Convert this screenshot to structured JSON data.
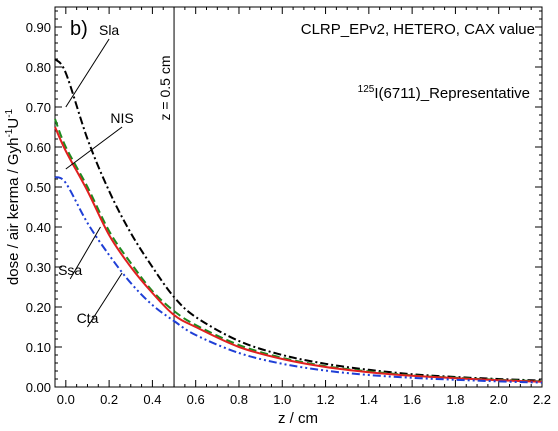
{
  "chart_data": {
    "type": "line",
    "panel_label": "b)",
    "title": "CLRP_EPv2, HETERO, CAX value",
    "subtitle": {
      "sup": "125",
      "main": "I(6711)_Representative"
    },
    "xlabel": "z / cm",
    "ylabel": {
      "main": "dose / air kerma / Gyh",
      "sup1": "-1",
      "mid": "U",
      "sup2": "-1"
    },
    "xlim": [
      -0.05,
      2.2
    ],
    "ylim": [
      0.0,
      0.95
    ],
    "xticks": [
      "0.0",
      "0.2",
      "0.4",
      "0.6",
      "0.8",
      "1.0",
      "1.2",
      "1.4",
      "1.6",
      "1.8",
      "2.0",
      "2.2"
    ],
    "yticks": [
      "0.00",
      "0.10",
      "0.20",
      "0.30",
      "0.40",
      "0.50",
      "0.60",
      "0.70",
      "0.80",
      "0.90"
    ],
    "vline": {
      "x": 0.5,
      "label": "z = 0.5 cm"
    },
    "series": [
      {
        "name": "Sla",
        "color": "#000000",
        "style": "dashdot",
        "x": [
          -0.05,
          0.0,
          0.1,
          0.2,
          0.3,
          0.4,
          0.5,
          0.6,
          0.8,
          1.0,
          1.2,
          1.4,
          1.6,
          1.8,
          2.0,
          2.2
        ],
        "y": [
          0.82,
          0.785,
          0.62,
          0.49,
          0.385,
          0.3,
          0.225,
          0.175,
          0.115,
          0.08,
          0.058,
          0.043,
          0.032,
          0.025,
          0.02,
          0.016
        ]
      },
      {
        "name": "NIS",
        "color": "#1e8a1e",
        "style": "dashed",
        "x": [
          -0.05,
          0.0,
          0.1,
          0.2,
          0.3,
          0.4,
          0.5,
          0.6,
          0.8,
          1.0,
          1.2,
          1.4,
          1.6,
          1.8,
          2.0,
          2.2
        ],
        "y": [
          0.67,
          0.6,
          0.5,
          0.39,
          0.31,
          0.24,
          0.19,
          0.155,
          0.105,
          0.073,
          0.052,
          0.039,
          0.029,
          0.023,
          0.018,
          0.014
        ]
      },
      {
        "name": "Ssa",
        "color": "#e02020",
        "style": "solid",
        "x": [
          -0.05,
          0.0,
          0.1,
          0.2,
          0.3,
          0.4,
          0.5,
          0.6,
          0.8,
          1.0,
          1.2,
          1.4,
          1.6,
          1.8,
          2.0,
          2.2
        ],
        "y": [
          0.65,
          0.59,
          0.49,
          0.38,
          0.3,
          0.235,
          0.18,
          0.15,
          0.1,
          0.07,
          0.05,
          0.037,
          0.028,
          0.022,
          0.017,
          0.013
        ]
      },
      {
        "name": "Cta",
        "color": "#1f3fd6",
        "style": "dashdotdot",
        "x": [
          -0.05,
          0.0,
          0.1,
          0.2,
          0.3,
          0.4,
          0.5,
          0.6,
          0.8,
          1.0,
          1.2,
          1.4,
          1.6,
          1.8,
          2.0,
          2.2
        ],
        "y": [
          0.525,
          0.51,
          0.41,
          0.33,
          0.26,
          0.205,
          0.165,
          0.13,
          0.085,
          0.058,
          0.041,
          0.03,
          0.023,
          0.018,
          0.014,
          0.011
        ]
      }
    ],
    "annotations": [
      {
        "text": "Sla",
        "x": 0.2,
        "y": 0.88,
        "target_x": 0.0,
        "target_y": 0.7
      },
      {
        "text": "NIS",
        "x": 0.26,
        "y": 0.66,
        "target_x": 0.0,
        "target_y": 0.545
      },
      {
        "text": "Ssa",
        "x": 0.02,
        "y": 0.28,
        "target_x": 0.16,
        "target_y": 0.4
      },
      {
        "text": "Cta",
        "x": 0.1,
        "y": 0.16,
        "target_x": 0.26,
        "target_y": 0.285
      }
    ]
  }
}
